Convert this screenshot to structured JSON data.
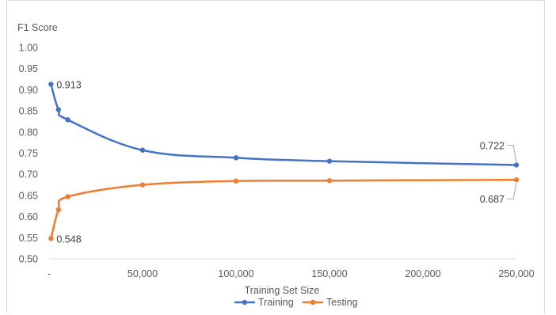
{
  "chart_data": {
    "type": "line",
    "title": "",
    "xlabel": "Training Set Size",
    "ylabel": "F1 Score",
    "xlim": [
      0,
      250000
    ],
    "ylim": [
      0.5,
      1.0
    ],
    "x_ticks": [
      0,
      50000,
      100000,
      150000,
      200000,
      250000
    ],
    "x_tick_labels": [
      "-",
      "50,000",
      "100,000",
      "150,000",
      "200,000",
      "250,000"
    ],
    "y_ticks": [
      0.5,
      0.55,
      0.6,
      0.65,
      0.7,
      0.75,
      0.8,
      0.85,
      0.9,
      0.95,
      1.0
    ],
    "y_tick_labels": [
      "0.50",
      "0.55",
      "0.60",
      "0.65",
      "0.70",
      "0.75",
      "0.80",
      "0.85",
      "0.90",
      "0.95",
      "1.00"
    ],
    "grid": false,
    "legend_position": "bottom",
    "series": [
      {
        "name": "Training",
        "color": "#4472C4",
        "x": [
          1000,
          5000,
          10000,
          50000,
          100000,
          150000,
          250000
        ],
        "y": [
          0.913,
          0.853,
          0.829,
          0.757,
          0.739,
          0.731,
          0.722
        ]
      },
      {
        "name": "Testing",
        "color": "#ED7D31",
        "x": [
          1000,
          5000,
          10000,
          50000,
          100000,
          150000,
          250000
        ],
        "y": [
          0.548,
          0.616,
          0.647,
          0.675,
          0.684,
          0.685,
          0.687
        ]
      }
    ],
    "annotations": [
      {
        "series": 0,
        "point": 0,
        "text": "0.913",
        "position": "right"
      },
      {
        "series": 1,
        "point": 0,
        "text": "0.548",
        "position": "right"
      },
      {
        "series": 0,
        "point": 6,
        "text": "0.722",
        "position": "upper-left",
        "leader": true
      },
      {
        "series": 1,
        "point": 6,
        "text": "0.687",
        "position": "lower-left",
        "leader": true
      }
    ]
  }
}
